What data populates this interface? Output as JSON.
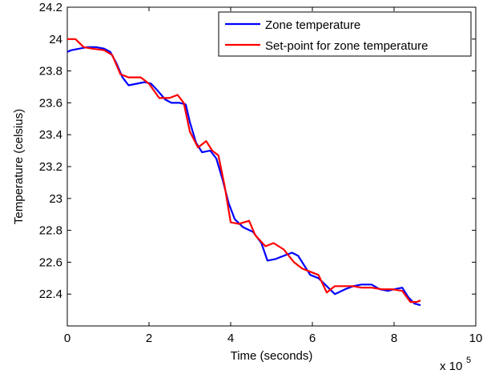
{
  "chart_data": {
    "type": "line",
    "xlabel": "Time (seconds)",
    "ylabel": "Temperature (celsius)",
    "x_multiplier_label": "x 10",
    "x_multiplier_exponent": "5",
    "xlim": [
      0,
      10
    ],
    "ylim": [
      22.2,
      24.2
    ],
    "x_ticks": [
      "0",
      "2",
      "4",
      "6",
      "8",
      "10"
    ],
    "y_ticks": [
      "22.4",
      "22.6",
      "22.8",
      "23",
      "23.2",
      "23.4",
      "23.6",
      "23.8",
      "24",
      "24.2"
    ],
    "grid": false,
    "legend_position": "top-right",
    "series": [
      {
        "name": "Zone temperature",
        "color": "#0000ff",
        "points": [
          [
            0.0,
            23.92
          ],
          [
            0.1,
            23.93
          ],
          [
            0.3,
            23.94
          ],
          [
            0.5,
            23.95
          ],
          [
            0.7,
            23.95
          ],
          [
            0.9,
            23.94
          ],
          [
            1.05,
            23.92
          ],
          [
            1.2,
            23.85
          ],
          [
            1.35,
            23.76
          ],
          [
            1.5,
            23.71
          ],
          [
            1.7,
            23.72
          ],
          [
            1.9,
            23.73
          ],
          [
            2.05,
            23.72
          ],
          [
            2.2,
            23.68
          ],
          [
            2.4,
            23.62
          ],
          [
            2.55,
            23.6
          ],
          [
            2.75,
            23.6
          ],
          [
            2.9,
            23.59
          ],
          [
            3.0,
            23.48
          ],
          [
            3.15,
            23.35
          ],
          [
            3.3,
            23.29
          ],
          [
            3.5,
            23.3
          ],
          [
            3.65,
            23.25
          ],
          [
            3.8,
            23.12
          ],
          [
            3.95,
            22.97
          ],
          [
            4.1,
            22.87
          ],
          [
            4.3,
            22.82
          ],
          [
            4.55,
            22.79
          ],
          [
            4.75,
            22.72
          ],
          [
            4.9,
            22.61
          ],
          [
            5.1,
            22.62
          ],
          [
            5.3,
            22.64
          ],
          [
            5.5,
            22.66
          ],
          [
            5.65,
            22.64
          ],
          [
            5.8,
            22.58
          ],
          [
            5.95,
            22.52
          ],
          [
            6.15,
            22.5
          ],
          [
            6.35,
            22.45
          ],
          [
            6.55,
            22.4
          ],
          [
            6.8,
            22.43
          ],
          [
            7.0,
            22.45
          ],
          [
            7.2,
            22.46
          ],
          [
            7.45,
            22.46
          ],
          [
            7.65,
            22.43
          ],
          [
            7.85,
            22.42
          ],
          [
            8.0,
            22.43
          ],
          [
            8.2,
            22.44
          ],
          [
            8.35,
            22.38
          ],
          [
            8.5,
            22.34
          ],
          [
            8.65,
            22.33
          ]
        ]
      },
      {
        "name": "Set-point for zone temperature",
        "color": "#ff0000",
        "points": [
          [
            0.0,
            24.0
          ],
          [
            0.2,
            24.0
          ],
          [
            0.4,
            23.95
          ],
          [
            0.6,
            23.94
          ],
          [
            0.9,
            23.93
          ],
          [
            1.1,
            23.9
          ],
          [
            1.3,
            23.78
          ],
          [
            1.5,
            23.76
          ],
          [
            1.8,
            23.76
          ],
          [
            2.0,
            23.72
          ],
          [
            2.25,
            23.63
          ],
          [
            2.5,
            23.63
          ],
          [
            2.7,
            23.65
          ],
          [
            2.85,
            23.6
          ],
          [
            3.0,
            23.42
          ],
          [
            3.2,
            23.32
          ],
          [
            3.4,
            23.36
          ],
          [
            3.55,
            23.3
          ],
          [
            3.7,
            23.27
          ],
          [
            3.85,
            23.08
          ],
          [
            4.0,
            22.85
          ],
          [
            4.2,
            22.84
          ],
          [
            4.45,
            22.86
          ],
          [
            4.6,
            22.77
          ],
          [
            4.85,
            22.7
          ],
          [
            5.05,
            22.72
          ],
          [
            5.3,
            22.68
          ],
          [
            5.55,
            22.6
          ],
          [
            5.75,
            22.56
          ],
          [
            5.95,
            22.54
          ],
          [
            6.15,
            22.52
          ],
          [
            6.35,
            22.41
          ],
          [
            6.55,
            22.45
          ],
          [
            6.75,
            22.45
          ],
          [
            7.0,
            22.45
          ],
          [
            7.2,
            22.44
          ],
          [
            7.45,
            22.44
          ],
          [
            7.7,
            22.43
          ],
          [
            7.95,
            22.43
          ],
          [
            8.2,
            22.42
          ],
          [
            8.4,
            22.35
          ],
          [
            8.55,
            22.35
          ],
          [
            8.65,
            22.36
          ]
        ]
      }
    ]
  }
}
